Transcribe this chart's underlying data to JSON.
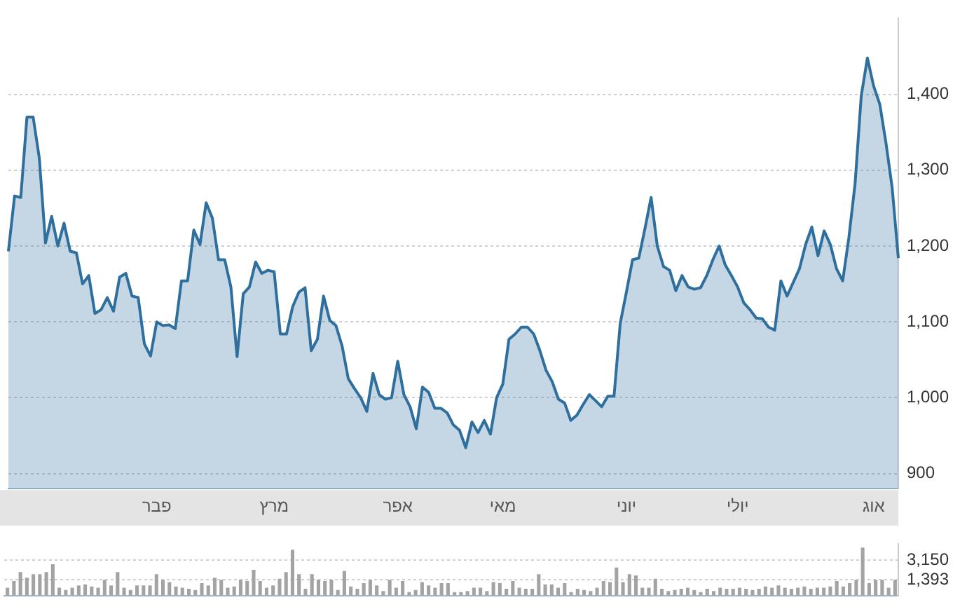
{
  "chart_data": [
    {
      "type": "area",
      "categories": [
        null,
        null,
        null,
        null,
        null,
        null,
        null,
        null,
        null,
        null,
        null,
        null,
        null,
        null,
        null,
        null,
        null,
        null,
        null,
        null,
        null,
        null,
        null,
        null,
        "פבר",
        null,
        null,
        null,
        null,
        null,
        null,
        null,
        null,
        null,
        null,
        null,
        null,
        null,
        null,
        null,
        null,
        null,
        null,
        "מרץ",
        null,
        null,
        null,
        null,
        null,
        null,
        null,
        null,
        null,
        null,
        null,
        null,
        null,
        null,
        null,
        null,
        null,
        null,
        null,
        "אפר",
        null,
        null,
        null,
        null,
        null,
        null,
        null,
        null,
        null,
        null,
        null,
        null,
        null,
        null,
        null,
        null,
        "מאי",
        null,
        null,
        null,
        null,
        null,
        null,
        null,
        null,
        null,
        null,
        null,
        null,
        null,
        null,
        null,
        null,
        null,
        null,
        null,
        "יוני",
        null,
        null,
        null,
        null,
        null,
        null,
        null,
        null,
        null,
        null,
        null,
        null,
        null,
        null,
        null,
        null,
        null,
        "יולי",
        null,
        null,
        null,
        null,
        null,
        null,
        null,
        null,
        null,
        null,
        null,
        null,
        null,
        null,
        null,
        null,
        null,
        null,
        null,
        null,
        null,
        "אוג",
        null,
        null,
        null,
        null
      ],
      "series": [
        {
          "color": "#2e6f9e",
          "values": [
            1193,
            1266,
            1264,
            1370,
            1370,
            1316,
            1204,
            1239,
            1200,
            1230,
            1193,
            1191,
            1150,
            1161,
            1111,
            1116,
            1132,
            1114,
            1159,
            1164,
            1134,
            1132,
            1071,
            1055,
            1100,
            1095,
            1096,
            1091,
            1154,
            1154,
            1221,
            1202,
            1257,
            1237,
            1182,
            1182,
            1146,
            1054,
            1137,
            1146,
            1179,
            1164,
            1168,
            1166,
            1084,
            1084,
            1120,
            1139,
            1145,
            1062,
            1077,
            1134,
            1102,
            1095,
            1068,
            1025,
            1012,
            1000,
            982,
            1032,
            1004,
            998,
            1000,
            1048,
            1004,
            988,
            959,
            1014,
            1007,
            986,
            986,
            980,
            964,
            957,
            934,
            968,
            954,
            970,
            952,
            1000,
            1018,
            1077,
            1084,
            1093,
            1093,
            1084,
            1062,
            1036,
            1021,
            998,
            993,
            970,
            977,
            991,
            1004,
            996,
            988,
            1002,
            1002,
            1098,
            1139,
            1182,
            1184,
            1223,
            1264,
            1200,
            1173,
            1168,
            1141,
            1161,
            1146,
            1143,
            1145,
            1161,
            1182,
            1200,
            1175,
            1161,
            1146,
            1125,
            1116,
            1105,
            1104,
            1093,
            1089,
            1154,
            1134,
            1152,
            1170,
            1202,
            1225,
            1187,
            1220,
            1202,
            1170,
            1154,
            1211,
            1282,
            1398,
            1448,
            1411,
            1387,
            1336,
            1277,
            1184
          ]
        }
      ],
      "ylim": [
        880,
        1500
      ],
      "yticks": [
        {
          "value": 900,
          "label": "900"
        },
        {
          "value": 1000,
          "label": "1,000"
        },
        {
          "value": 1100,
          "label": "1,100"
        },
        {
          "value": 1200,
          "label": "1,200"
        },
        {
          "value": 1300,
          "label": "1,300"
        },
        {
          "value": 1400,
          "label": "1,400"
        }
      ],
      "grid": "y"
    },
    {
      "type": "bar",
      "categories": [
        null,
        null,
        null,
        null,
        null,
        null,
        null,
        null,
        null,
        null,
        null,
        null,
        null,
        null,
        null,
        null,
        null,
        null,
        null,
        null,
        null,
        null,
        null,
        null,
        null,
        null,
        null,
        null,
        null,
        null,
        null,
        null,
        null,
        null,
        null,
        null,
        null,
        null,
        null,
        null,
        null,
        null,
        null,
        null,
        null,
        null,
        null,
        null,
        null,
        null,
        null,
        null,
        null,
        null,
        null,
        null,
        null,
        null,
        null,
        null,
        null,
        null,
        null,
        null,
        null,
        null,
        null,
        null,
        null,
        null,
        null,
        null,
        null,
        null,
        null,
        null,
        null,
        null,
        null,
        null,
        null,
        null,
        null,
        null,
        null,
        null,
        null,
        null,
        null,
        null,
        null,
        null,
        null,
        null,
        null,
        null,
        null,
        null,
        null,
        null,
        null,
        null,
        null,
        null,
        null,
        null,
        null,
        null,
        null,
        null,
        null,
        null,
        null,
        null,
        null,
        null,
        null,
        null,
        null,
        null,
        null,
        null,
        null,
        null,
        null,
        null,
        null,
        null,
        null,
        null,
        null,
        null,
        null,
        null,
        null,
        null,
        null,
        null
      ],
      "series": [
        {
          "color": "#a3a3a3",
          "values": [
            700,
            1300,
            2100,
            1600,
            1900,
            1900,
            2100,
            2800,
            700,
            500,
            700,
            900,
            1000,
            800,
            700,
            1400,
            900,
            2100,
            700,
            500,
            900,
            900,
            900,
            1900,
            1400,
            1200,
            800,
            700,
            600,
            500,
            1100,
            900,
            1600,
            1400,
            700,
            800,
            1400,
            1300,
            2300,
            1300,
            700,
            900,
            1500,
            2100,
            4100,
            1900,
            600,
            1900,
            1400,
            1300,
            1400,
            500,
            2200,
            800,
            600,
            1100,
            1400,
            900,
            400,
            1400,
            700,
            1300,
            300,
            500,
            1200,
            900,
            700,
            1100,
            1100,
            300,
            300,
            400,
            700,
            700,
            400,
            1200,
            1100,
            600,
            1300,
            700,
            600,
            600,
            1900,
            1000,
            1000,
            700,
            1100,
            300,
            600,
            500,
            400,
            700,
            1300,
            1200,
            2500,
            1200,
            1900,
            1800,
            700,
            700,
            1500,
            600,
            400,
            500,
            600,
            700,
            500,
            300,
            600,
            400,
            700,
            600,
            600,
            700,
            600,
            500,
            600,
            800,
            700,
            900,
            700,
            600,
            700,
            800,
            600,
            700,
            700,
            800,
            1300,
            800,
            1100,
            1400,
            4300,
            1100,
            1400,
            1400,
            700,
            1400
          ]
        }
      ],
      "ylim": [
        0,
        4600
      ],
      "yticks": [
        {
          "value": 1393,
          "label": "1,393"
        },
        {
          "value": 3150,
          "label": "3,150"
        }
      ],
      "grid": "y",
      "tick_labels": "y"
    }
  ]
}
